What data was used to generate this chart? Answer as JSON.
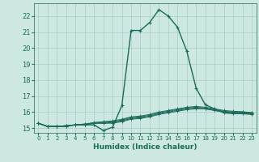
{
  "title": "",
  "xlabel": "Humidex (Indice chaleur)",
  "background_color": "#cce8e0",
  "grid_color": "#aacccc",
  "line_color": "#1a6b5a",
  "xlim": [
    -0.5,
    23.5
  ],
  "ylim": [
    14.7,
    22.8
  ],
  "xticks": [
    0,
    1,
    2,
    3,
    4,
    5,
    6,
    7,
    8,
    9,
    10,
    11,
    12,
    13,
    14,
    15,
    16,
    17,
    18,
    19,
    20,
    21,
    22,
    23
  ],
  "yticks": [
    15,
    16,
    17,
    18,
    19,
    20,
    21,
    22
  ],
  "series": [
    [
      15.3,
      15.1,
      15.1,
      15.1,
      15.2,
      15.2,
      15.2,
      14.85,
      15.05,
      16.4,
      21.1,
      21.1,
      21.6,
      22.4,
      22.0,
      21.3,
      19.8,
      17.5,
      16.45,
      16.2,
      15.95,
      15.9,
      15.9,
      15.85
    ],
    [
      15.3,
      15.1,
      15.1,
      15.1,
      15.2,
      15.2,
      15.3,
      15.3,
      15.3,
      15.4,
      15.55,
      15.6,
      15.7,
      15.85,
      15.95,
      16.05,
      16.15,
      16.2,
      16.2,
      16.1,
      16.0,
      15.95,
      15.95,
      15.9
    ],
    [
      15.3,
      15.1,
      15.1,
      15.15,
      15.2,
      15.2,
      15.3,
      15.3,
      15.35,
      15.45,
      15.6,
      15.65,
      15.75,
      15.9,
      16.0,
      16.1,
      16.2,
      16.25,
      16.2,
      16.1,
      16.0,
      15.98,
      15.97,
      15.92
    ],
    [
      15.3,
      15.1,
      15.1,
      15.15,
      15.2,
      15.25,
      15.3,
      15.35,
      15.4,
      15.5,
      15.65,
      15.7,
      15.8,
      15.95,
      16.05,
      16.15,
      16.25,
      16.3,
      16.25,
      16.15,
      16.05,
      16.0,
      16.0,
      15.95
    ],
    [
      15.3,
      15.1,
      15.1,
      15.15,
      15.2,
      15.25,
      15.35,
      15.4,
      15.45,
      15.55,
      15.7,
      15.75,
      15.85,
      16.0,
      16.1,
      16.2,
      16.3,
      16.35,
      16.3,
      16.2,
      16.1,
      16.05,
      16.02,
      15.97
    ]
  ],
  "marker": "+",
  "main_lw": 1.0,
  "other_lw": 0.7,
  "main_ms": 3.5,
  "other_ms": 2.5
}
